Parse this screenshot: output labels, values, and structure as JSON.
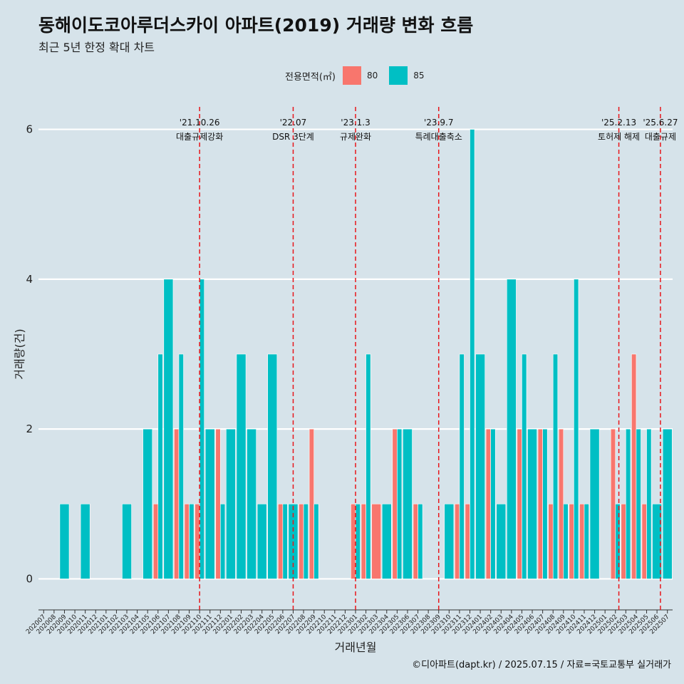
{
  "title": "동해이도코아루더스카이 아파트(2019) 거래량 변화 흐름",
  "subtitle": "최근 5년 한정 확대 차트",
  "legend": {
    "title": "전용면적(㎡)",
    "items": [
      {
        "label": "80",
        "color": "#f8766d"
      },
      {
        "label": "85",
        "color": "#00bfc4"
      }
    ]
  },
  "caption": "©디아파트(dapt.kr) / 2025.07.15 / 자료=국토교통부 실거래가",
  "chart_data": {
    "type": "bar",
    "title": "동해이도코아루더스카이 아파트(2019) 거래량 변화 흐름",
    "xlabel": "거래년월",
    "ylabel": "거래량(건)",
    "ylim": [
      -0.3,
      6.3
    ],
    "yticks": [
      0,
      2,
      4,
      6
    ],
    "categories": [
      "202007",
      "202008",
      "202009",
      "202010",
      "202011",
      "202012",
      "202101",
      "202102",
      "202103",
      "202104",
      "202105",
      "202106",
      "202107",
      "202108",
      "202109",
      "202110",
      "202111",
      "202112",
      "202201",
      "202202",
      "202203",
      "202204",
      "202205",
      "202206",
      "202207",
      "202208",
      "202209",
      "202210",
      "202211",
      "202212",
      "202301",
      "202302",
      "202303",
      "202304",
      "202305",
      "202306",
      "202307",
      "202308",
      "202309",
      "202310",
      "202311",
      "202312",
      "202401",
      "202402",
      "202403",
      "202404",
      "202405",
      "202406",
      "202407",
      "202408",
      "202409",
      "202410",
      "202411",
      "202412",
      "202501",
      "202502",
      "202503",
      "202504",
      "202505",
      "202506",
      "202507"
    ],
    "series": [
      {
        "name": "80",
        "color": "#f8766d",
        "values": [
          0,
          0,
          0,
          0,
          0,
          0,
          0,
          0,
          0,
          0,
          0,
          1,
          0,
          2,
          1,
          1,
          0,
          2,
          0,
          0,
          0,
          0,
          0,
          1,
          0,
          1,
          2,
          0,
          0,
          0,
          1,
          1,
          1,
          0,
          2,
          0,
          1,
          0,
          0,
          0,
          1,
          1,
          0,
          2,
          0,
          0,
          2,
          0,
          2,
          1,
          2,
          1,
          1,
          0,
          0,
          2,
          1,
          3,
          1,
          0,
          0
        ]
      },
      {
        "name": "85",
        "color": "#00bfc4",
        "values": [
          0,
          0,
          1,
          0,
          1,
          0,
          0,
          0,
          1,
          0,
          2,
          3,
          4,
          3,
          1,
          4,
          2,
          1,
          2,
          3,
          2,
          1,
          3,
          1,
          1,
          1,
          1,
          0,
          0,
          0,
          1,
          3,
          0,
          1,
          2,
          2,
          1,
          0,
          0,
          1,
          3,
          6,
          3,
          2,
          1,
          4,
          3,
          2,
          2,
          3,
          1,
          4,
          1,
          2,
          0,
          1,
          2,
          2,
          2,
          1,
          2
        ]
      }
    ],
    "events": [
      {
        "date": "'21.10.26",
        "label": "대출규제강화",
        "index": 15
      },
      {
        "date": "'22.07",
        "label": "DSR 3단계",
        "index": 24
      },
      {
        "date": "'23.1.3",
        "label": "규제완화",
        "index": 30
      },
      {
        "date": "'23.9.7",
        "label": "특례대출축소",
        "index": 38
      },
      {
        "date": "'25.2.13",
        "label": "토허제 해제",
        "index": 55.33
      },
      {
        "date": "'25.6.27",
        "label": "대출규제",
        "index": 59.33
      }
    ]
  }
}
